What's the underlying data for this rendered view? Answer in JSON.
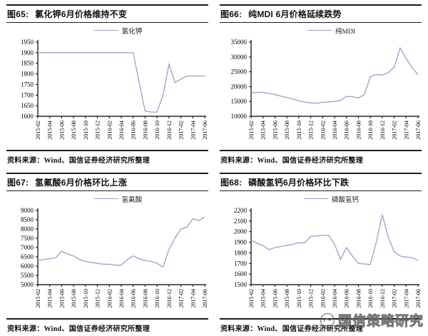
{
  "page": {
    "background": "#ffffff"
  },
  "watermark": {
    "text": "国信策略研究",
    "logo": "guosen-circle-logo",
    "color": "#828282"
  },
  "source_note": "资料来源：Wind、国信证券经济研究所整理",
  "chart_data": [
    {
      "type": "line",
      "fig_label": "图65:",
      "title": "氯化钾6月价格维持不变",
      "legend": "氯化钾",
      "line_color": "#9c9cc9",
      "ylim": [
        1600,
        1950
      ],
      "ytick_step": 50,
      "grid": false,
      "legend_position": "top",
      "xlabel": "",
      "ylabel": "",
      "x": [
        "2015-02",
        "2015-03",
        "2015-04",
        "2015-05",
        "2015-06",
        "2015-07",
        "2015-08",
        "2015-09",
        "2015-10",
        "2015-11",
        "2015-12",
        "2016-01",
        "2016-02",
        "2016-03",
        "2016-04",
        "2016-05",
        "2016-06",
        "2016-07",
        "2016-08",
        "2016-09",
        "2016-10",
        "2016-11",
        "2016-12",
        "2017-01",
        "2017-02",
        "2017-03",
        "2017-04",
        "2017-05",
        "2017-06"
      ],
      "values": [
        1900,
        1900,
        1900,
        1900,
        1900,
        1900,
        1900,
        1900,
        1900,
        1900,
        1900,
        1900,
        1900,
        1900,
        1900,
        1900,
        1900,
        1760,
        1625,
        1620,
        1620,
        1700,
        1845,
        1760,
        1775,
        1790,
        1790,
        1790,
        1790
      ],
      "source": "资料来源：Wind、国信证券经济研究所整理"
    },
    {
      "type": "line",
      "fig_label": "图66:",
      "title": "纯MDI 6月价格延续跌势",
      "legend": "纯MDI",
      "line_color": "#9c9cc9",
      "ylim": [
        10000,
        35000
      ],
      "ytick_step": 5000,
      "grid": false,
      "legend_position": "top",
      "xlabel": "",
      "ylabel": "",
      "x": [
        "2015-02",
        "2015-03",
        "2015-04",
        "2015-05",
        "2015-06",
        "2015-07",
        "2015-08",
        "2015-09",
        "2015-10",
        "2015-11",
        "2015-12",
        "2016-01",
        "2016-02",
        "2016-03",
        "2016-04",
        "2016-05",
        "2016-06",
        "2016-07",
        "2016-08",
        "2016-09",
        "2016-10",
        "2016-11",
        "2016-12",
        "2017-01",
        "2017-02",
        "2017-03",
        "2017-04",
        "2017-05",
        "2017-06"
      ],
      "values": [
        18000,
        18000,
        18100,
        17700,
        17300,
        16800,
        16300,
        15800,
        15200,
        14800,
        14500,
        14400,
        14700,
        14800,
        15000,
        15400,
        16700,
        16600,
        16200,
        17300,
        23300,
        24100,
        23900,
        24700,
        26500,
        33000,
        29500,
        26500,
        24000
      ],
      "source": "资料来源：Wind、国信证券经济研究所整理"
    },
    {
      "type": "line",
      "fig_label": "图67:",
      "title": "氢氟酸6月价格环比上涨",
      "legend": "氢氟酸",
      "line_color": "#9c9cc9",
      "ylim": [
        5000,
        9000
      ],
      "ytick_step": 500,
      "grid": false,
      "legend_position": "top",
      "xlabel": "",
      "ylabel": "",
      "x": [
        "2015-02",
        "2015-03",
        "2015-04",
        "2015-05",
        "2015-06",
        "2015-07",
        "2015-08",
        "2015-09",
        "2015-10",
        "2015-11",
        "2015-12",
        "2016-01",
        "2016-02",
        "2016-03",
        "2016-04",
        "2016-05",
        "2016-06",
        "2016-07",
        "2016-08",
        "2016-09",
        "2016-10",
        "2016-11",
        "2016-12",
        "2017-01",
        "2017-02",
        "2017-03",
        "2017-04",
        "2017-05",
        "2017-06"
      ],
      "values": [
        6300,
        6350,
        6400,
        6450,
        6800,
        6650,
        6550,
        6350,
        6250,
        6200,
        6150,
        6100,
        6100,
        6050,
        6050,
        6350,
        6550,
        6400,
        6300,
        6250,
        6150,
        5950,
        6900,
        7500,
        8000,
        8100,
        8550,
        8450,
        8650
      ],
      "source": "资料来源：Wind、国信证券经济研究所整理"
    },
    {
      "type": "line",
      "fig_label": "图68:",
      "title": "磷酸氢钙6月价格环比下跌",
      "legend": "磷酸氢钙",
      "line_color": "#9c9cc9",
      "ylim": [
        1500,
        2200
      ],
      "ytick_step": 100,
      "grid": false,
      "legend_position": "top",
      "xlabel": "",
      "ylabel": "",
      "x": [
        "2015-02",
        "2015-03",
        "2015-04",
        "2015-05",
        "2015-06",
        "2015-07",
        "2015-08",
        "2015-09",
        "2015-10",
        "2015-11",
        "2015-12",
        "2016-01",
        "2016-02",
        "2016-03",
        "2016-04",
        "2016-05",
        "2016-06",
        "2016-07",
        "2016-08",
        "2016-09",
        "2016-10",
        "2016-11",
        "2016-12",
        "2017-01",
        "2017-02",
        "2017-03",
        "2017-04",
        "2017-05",
        "2017-06"
      ],
      "values": [
        1920,
        1890,
        1870,
        1830,
        1850,
        1860,
        1870,
        1880,
        1895,
        1895,
        1955,
        1960,
        1965,
        1965,
        1880,
        1740,
        1850,
        1770,
        1700,
        1695,
        1690,
        1900,
        2160,
        1950,
        1810,
        1770,
        1760,
        1755,
        1730
      ],
      "source": "资料来源：Wind、国信证券经济研究所整理"
    }
  ]
}
